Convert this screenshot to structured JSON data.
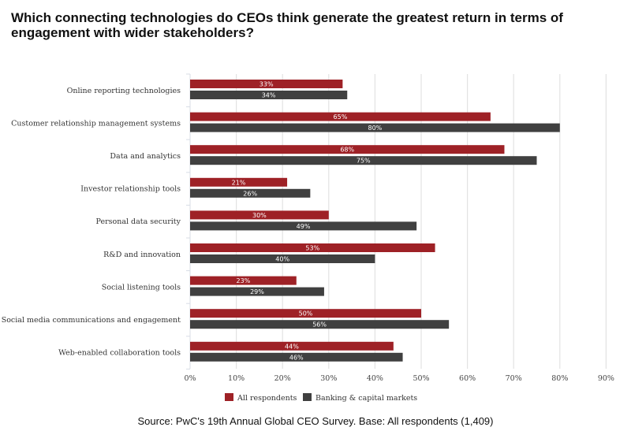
{
  "title": "Which connecting technologies do CEOs think generate the greatest return in terms of engagement with wider stakeholders?",
  "source": "Source: PwC's 19th Annual Global CEO Survey. Base: All respondents (1,409)",
  "chart_data": {
    "type": "bar",
    "orientation": "horizontal",
    "title": "Which connecting technologies do CEOs think generate the greatest return in terms of engagement with wider stakeholders?",
    "xlabel": "",
    "ylabel": "",
    "xlim": [
      0,
      90
    ],
    "x_ticks": [
      "0%",
      "10%",
      "20%",
      "30%",
      "40%",
      "50%",
      "60%",
      "70%",
      "80%",
      "90%"
    ],
    "grid": true,
    "legend_position": "bottom",
    "categories": [
      "Online reporting technologies",
      "Customer relationship management systems",
      "Data and analytics",
      "Investor relationship tools",
      "Personal data security",
      "R&D and innovation",
      "Social listening tools",
      "Social media communications and engagement",
      "Web-enabled collaboration tools"
    ],
    "series": [
      {
        "name": "All respondents",
        "color": "#9e2126",
        "values": [
          33,
          65,
          68,
          21,
          30,
          53,
          23,
          50,
          44
        ]
      },
      {
        "name": "Banking & capital markets",
        "color": "#404040",
        "values": [
          34,
          80,
          75,
          26,
          49,
          40,
          29,
          56,
          46
        ]
      }
    ],
    "value_suffix": "%"
  }
}
